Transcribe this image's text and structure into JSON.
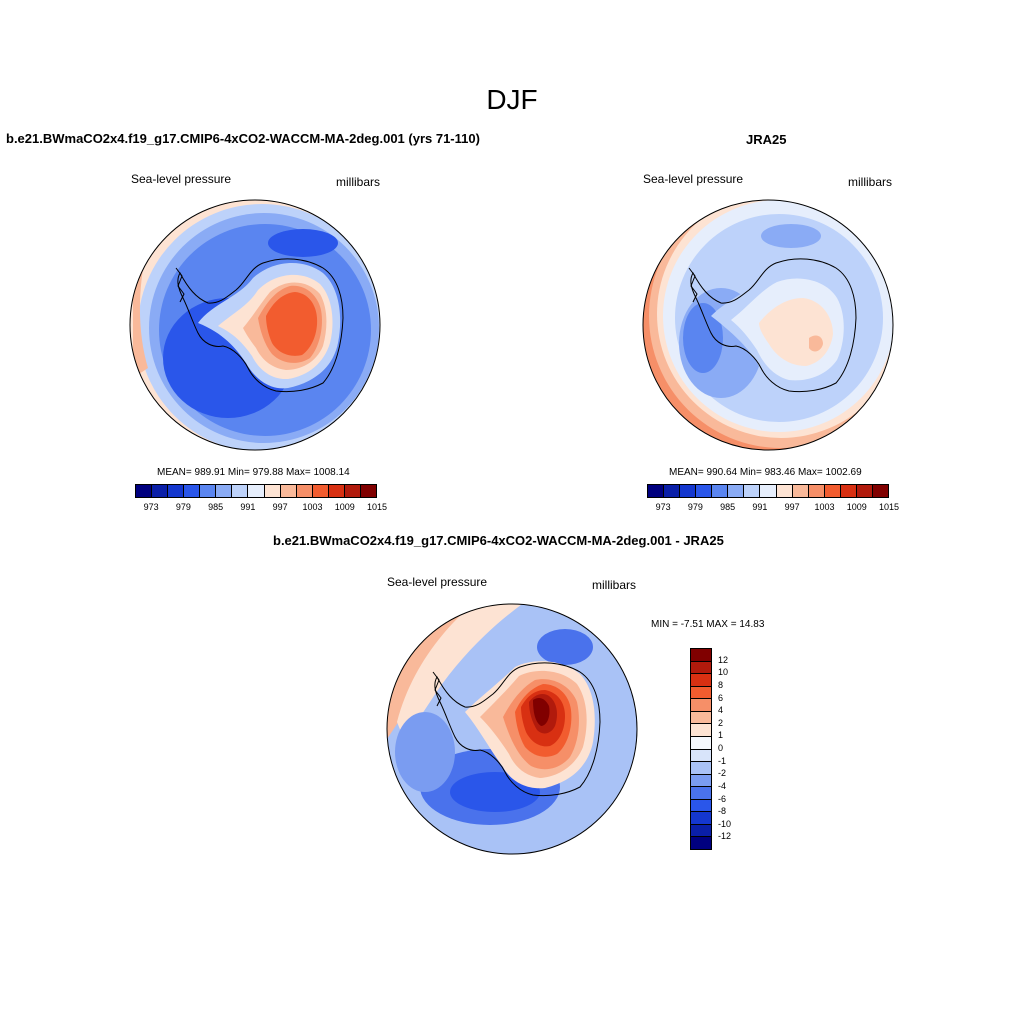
{
  "main_title": "DJF",
  "panel_left": {
    "title": "b.e21.BWmaCO2x4.f19_g17.CMIP6-4xCO2-WACCM-MA-2deg.001 (yrs 71-110)",
    "variable": "Sea-level pressure",
    "units": "millibars",
    "stats": "MEAN= 989.91  Min= 979.88  Max= 1008.14"
  },
  "panel_right": {
    "title": "JRA25",
    "variable": "Sea-level pressure",
    "units": "millibars",
    "stats": "MEAN= 990.64  Min= 983.46  Max= 1002.69"
  },
  "panel_diff": {
    "title": "b.e21.BWmaCO2x4.f19_g17.CMIP6-4xCO2-WACCM-MA-2deg.001 - JRA25",
    "variable": "Sea-level pressure",
    "units": "millibars",
    "stats": "MIN =  -7.51 MAX =  14.83"
  },
  "colorbar_abs": {
    "ticks": [
      "973",
      "979",
      "985",
      "991",
      "997",
      "1003",
      "1009",
      "1015"
    ],
    "colors": [
      "#00007f",
      "#0a1fa8",
      "#1437cf",
      "#2a56ea",
      "#5a85f0",
      "#8aabf5",
      "#bdd2fa",
      "#e6eefc",
      "#fde3d3",
      "#f9b99a",
      "#f68f68",
      "#f25c2f",
      "#d83012",
      "#b11a0c",
      "#800000"
    ]
  },
  "colorbar_diff": {
    "ticks": [
      "12",
      "10",
      "8",
      "6",
      "4",
      "2",
      "1",
      "0",
      "-1",
      "-2",
      "-4",
      "-6",
      "-8",
      "-10",
      "-12"
    ],
    "colors": [
      "#800000",
      "#b11a0c",
      "#d83012",
      "#f25c2f",
      "#f68f68",
      "#f9b99a",
      "#fde3d3",
      "#f5f8fd",
      "#d8e4fa",
      "#a9c2f6",
      "#7a9cf1",
      "#4a72ec",
      "#2a56ea",
      "#1437cf",
      "#0a1fa8",
      "#00007f"
    ]
  }
}
